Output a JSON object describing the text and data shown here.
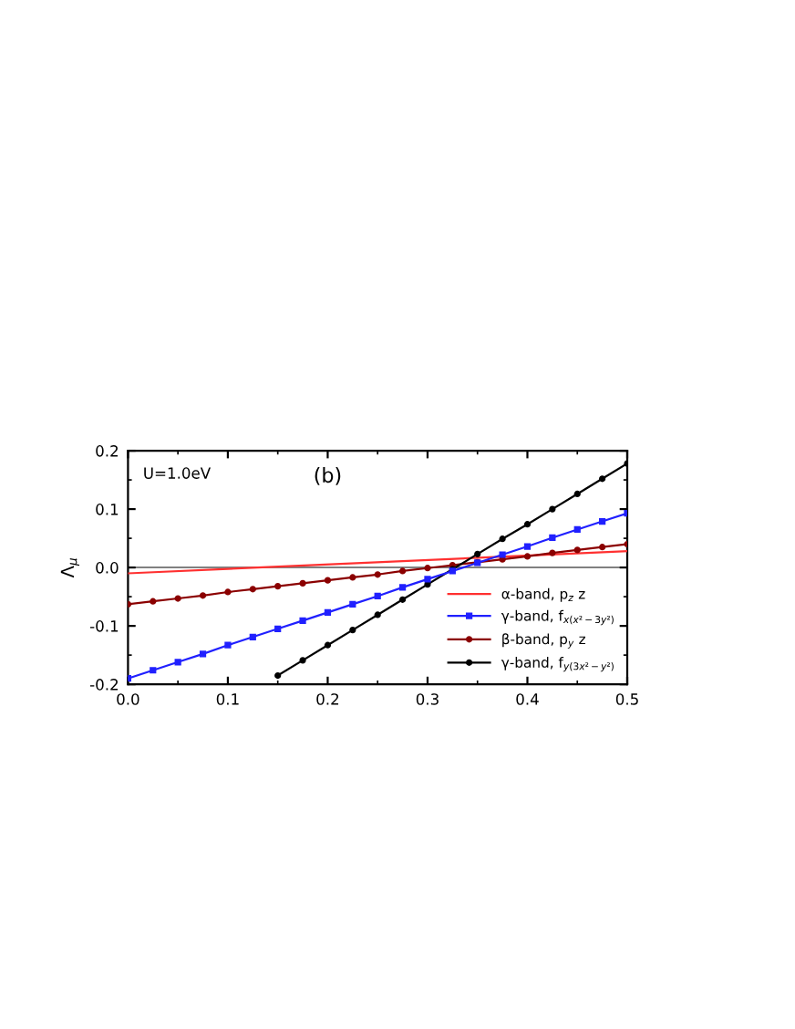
{
  "chart_data": {
    "type": "line",
    "ylabel": "Λ$_{μ}$",
    "annotations": [
      "U=1.0eV",
      "(b)"
    ],
    "xlim": [
      0,
      0.5
    ],
    "ylim": [
      -0.2,
      0.2
    ],
    "xticks": [
      {
        "value": 0,
        "label": "0.0"
      },
      0.1,
      0.2,
      0.3,
      0.4,
      0.5
    ],
    "yticks": [
      {
        "value": -0.2,
        "label": "-0.2"
      },
      {
        "value": -0.1,
        "label": "-0.1"
      },
      {
        "value": 0,
        "label": "0.0"
      },
      0.1,
      0.2
    ],
    "ref_lines": [
      {
        "axis": "y",
        "value": 0,
        "color": "#808080"
      }
    ],
    "legend": "bottom right",
    "grid": false,
    "series": [
      {
        "name": "α-band, p$_{z}$ z",
        "color": "#ff3030",
        "marker": "none",
        "x": [
          0,
          0.5
        ],
        "values": [
          -0.01,
          0.028
        ]
      },
      {
        "name": "γ-band, f$_{x(x²−3y²)}$",
        "color": "#2020ff",
        "marker": "square",
        "x": [
          0,
          0.025,
          0.05,
          0.075,
          0.1,
          0.125,
          0.15,
          0.175,
          0.2,
          0.225,
          0.25,
          0.275,
          0.3,
          0.325,
          0.35,
          0.375,
          0.4,
          0.425,
          0.45,
          0.475,
          0.5
        ],
        "values": [
          -0.19,
          -0.176,
          -0.162,
          -0.148,
          -0.133,
          -0.119,
          -0.105,
          -0.091,
          -0.077,
          -0.063,
          -0.049,
          -0.034,
          -0.02,
          -0.006,
          0.008,
          0.022,
          0.036,
          0.051,
          0.065,
          0.079,
          0.093
        ]
      },
      {
        "name": "β-band, p$_{y}$ z",
        "color": "#8b0000",
        "marker": "circle",
        "x": [
          0,
          0.025,
          0.05,
          0.075,
          0.1,
          0.125,
          0.15,
          0.175,
          0.2,
          0.225,
          0.25,
          0.275,
          0.3,
          0.325,
          0.35,
          0.375,
          0.4,
          0.425,
          0.45,
          0.475,
          0.5
        ],
        "values": [
          -0.063,
          -0.058,
          -0.053,
          -0.048,
          -0.042,
          -0.037,
          -0.032,
          -0.027,
          -0.022,
          -0.017,
          -0.012,
          -0.006,
          -0.001,
          0.004,
          0.009,
          0.014,
          0.019,
          0.025,
          0.03,
          0.035,
          0.04
        ]
      },
      {
        "name": "γ-band, f$_{y(3x²−y²)}$",
        "color": "#000000",
        "marker": "circle",
        "x": [
          0.15,
          0.175,
          0.2,
          0.225,
          0.25,
          0.275,
          0.3,
          0.325,
          0.35,
          0.375,
          0.4,
          0.425,
          0.45,
          0.475,
          0.5
        ],
        "values": [
          -0.185,
          -0.159,
          -0.133,
          -0.107,
          -0.081,
          -0.055,
          -0.029,
          -0.003,
          0.023,
          0.049,
          0.074,
          0.1,
          0.126,
          0.152,
          0.178
        ]
      }
    ]
  }
}
